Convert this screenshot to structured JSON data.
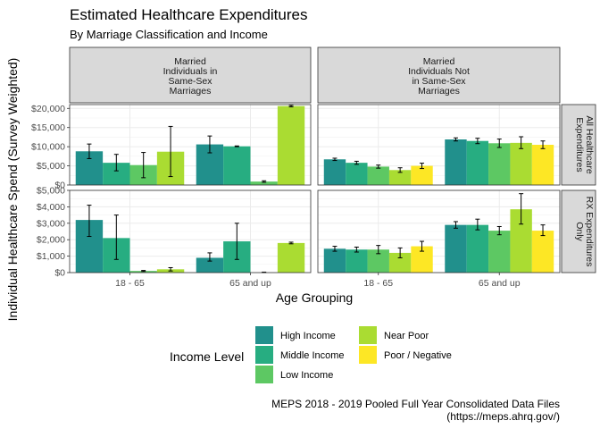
{
  "chart_data": {
    "type": "bar",
    "title": "Estimated Healthcare Expenditures",
    "subtitle": "By Marriage Classification and Income",
    "xlabel": "Age Grouping",
    "ylabel": "Individual Healthcare Spend (Survey Weighted)",
    "caption_line1": "MEPS 2018 - 2019 Pooled Full Year Consolidated Data Files",
    "caption_line2": "(https://meps.ahrq.gov/)",
    "grid": true,
    "legend_position": "bottom",
    "legend_title": "Income Level",
    "categories": [
      "18 - 65",
      "65 and up"
    ],
    "series": [
      {
        "name": "High Income",
        "color": "#21908C"
      },
      {
        "name": "Middle Income",
        "color": "#27AD81"
      },
      {
        "name": "Low Income",
        "color": "#5DC863"
      },
      {
        "name": "Near Poor",
        "color": "#AADC32"
      },
      {
        "name": "Poor / Negative",
        "color": "#FDE725"
      }
    ],
    "col_facets": [
      {
        "lines": [
          "Married",
          "Individuals in",
          "Same-Sex",
          "Marriages"
        ]
      },
      {
        "lines": [
          "Married",
          "Individuals Not",
          "in Same-Sex",
          "Marriages"
        ]
      }
    ],
    "row_facets": [
      {
        "lines": [
          "All Healthcare",
          "Expenditures"
        ],
        "ylim": [
          0,
          21000
        ],
        "ticks": [
          0,
          5000,
          10000,
          15000,
          20000
        ],
        "tick_labels": [
          "$0",
          "$5,000",
          "$10,000",
          "$15,000",
          "$20,000"
        ]
      },
      {
        "lines": [
          "RX Expenditures",
          "Only"
        ],
        "ylim": [
          0,
          5000
        ],
        "ticks": [
          0,
          1000,
          2000,
          3000,
          4000,
          5000
        ],
        "tick_labels": [
          "$0",
          "$1,000",
          "$2,000",
          "$3,000",
          "$4,000",
          "$5,000"
        ]
      }
    ],
    "panels": [
      {
        "row": 0,
        "col": 0,
        "values": [
          [
            8800,
            5800,
            5200,
            8700
          ],
          [
            10600,
            10100,
            900,
            20600
          ]
        ],
        "errors": [
          [
            [
              6900,
              10700
            ],
            [
              3700,
              8000
            ],
            [
              1900,
              8500
            ],
            [
              2200,
              15300
            ]
          ],
          [
            [
              8400,
              12800
            ],
            [
              10000,
              10200
            ],
            [
              700,
              1100
            ],
            [
              20400,
              20800
            ]
          ]
        ]
      },
      {
        "row": 0,
        "col": 1,
        "values": [
          [
            6700,
            5800,
            4800,
            3900,
            5000
          ],
          [
            11900,
            11500,
            10900,
            11000,
            10500
          ]
        ],
        "errors": [
          [
            [
              6400,
              7000
            ],
            [
              5400,
              6200
            ],
            [
              4400,
              5200
            ],
            [
              3300,
              4500
            ],
            [
              4300,
              5700
            ]
          ],
          [
            [
              11500,
              12300
            ],
            [
              10800,
              12200
            ],
            [
              9800,
              12000
            ],
            [
              9500,
              12600
            ],
            [
              9500,
              11500
            ]
          ]
        ]
      },
      {
        "row": 1,
        "col": 0,
        "values": [
          [
            3200,
            2100,
            100,
            200
          ],
          [
            900,
            1900,
            0,
            1800
          ]
        ],
        "errors": [
          [
            [
              2200,
              4100
            ],
            [
              800,
              3500
            ],
            [
              70,
              130
            ],
            [
              100,
              300
            ]
          ],
          [
            [
              700,
              1200
            ],
            [
              800,
              3000
            ],
            [
              0,
              30
            ],
            [
              1750,
              1850
            ]
          ]
        ]
      },
      {
        "row": 1,
        "col": 1,
        "values": [
          [
            1450,
            1400,
            1400,
            1200,
            1600
          ],
          [
            2900,
            2900,
            2550,
            3850,
            2550
          ]
        ],
        "errors": [
          [
            [
              1300,
              1600
            ],
            [
              1250,
              1550
            ],
            [
              1150,
              1650
            ],
            [
              900,
              1500
            ],
            [
              1300,
              1900
            ]
          ],
          [
            [
              2700,
              3100
            ],
            [
              2600,
              3250
            ],
            [
              2300,
              2800
            ],
            [
              2950,
              4800
            ],
            [
              2250,
              2900
            ]
          ]
        ]
      }
    ]
  }
}
